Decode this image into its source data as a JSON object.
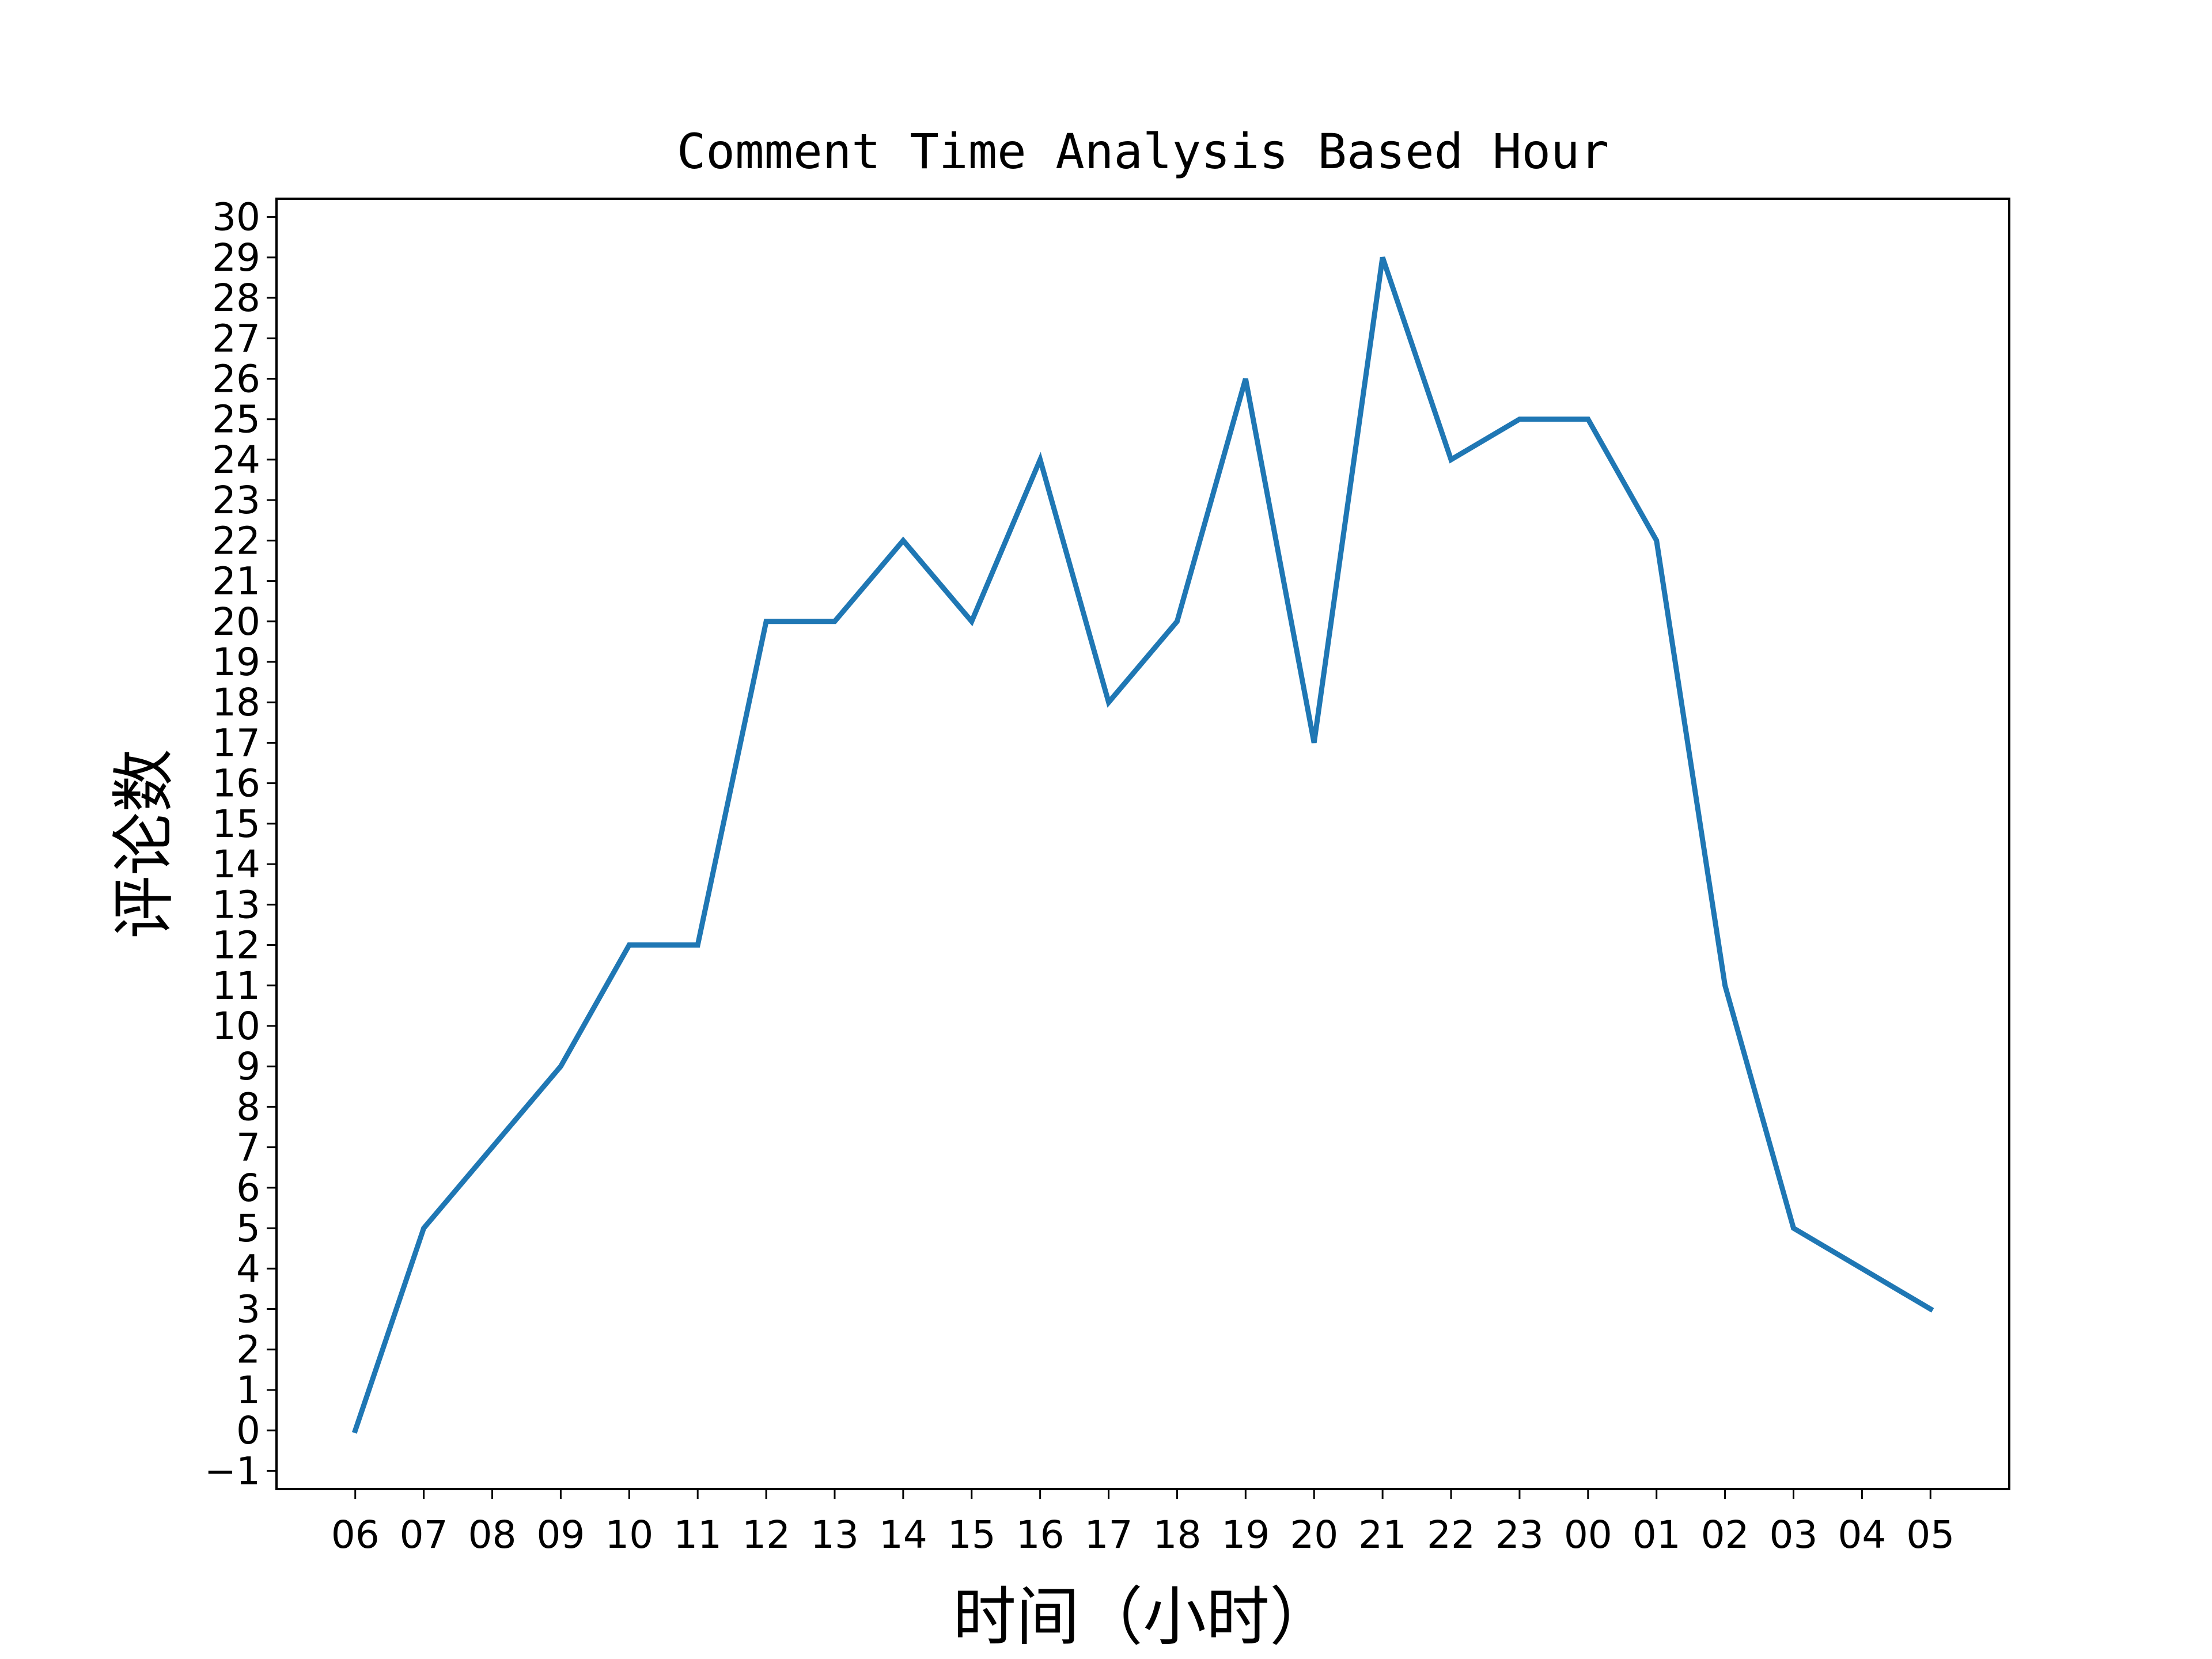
{
  "chart_data": {
    "type": "line",
    "title": "Comment Time Analysis Based Hour",
    "xlabel": "时间（小时）",
    "ylabel": "评论数",
    "categories": [
      "06",
      "07",
      "08",
      "09",
      "10",
      "11",
      "12",
      "13",
      "14",
      "15",
      "16",
      "17",
      "18",
      "19",
      "20",
      "21",
      "22",
      "23",
      "00",
      "01",
      "02",
      "03",
      "04",
      "05"
    ],
    "series": [
      {
        "values": [
          0,
          5,
          7,
          9,
          12,
          12,
          20,
          20,
          22,
          20,
          24,
          18,
          20,
          26,
          17,
          29,
          24,
          25,
          25,
          22,
          11,
          5,
          4,
          3
        ]
      }
    ],
    "ylim": [
      -1.45,
      30.45
    ],
    "yticks": [
      -1,
      0,
      1,
      2,
      3,
      4,
      5,
      6,
      7,
      8,
      9,
      10,
      11,
      12,
      13,
      14,
      15,
      16,
      17,
      18,
      19,
      20,
      21,
      22,
      23,
      24,
      25,
      26,
      27,
      28,
      29,
      30
    ],
    "ytick_labels": [
      "−1",
      "0",
      "1",
      "2",
      "3",
      "4",
      "5",
      "6",
      "7",
      "8",
      "9",
      "10",
      "11",
      "12",
      "13",
      "14",
      "15",
      "16",
      "17",
      "18",
      "19",
      "20",
      "21",
      "22",
      "23",
      "24",
      "25",
      "26",
      "27",
      "28",
      "29",
      "30"
    ],
    "grid": false,
    "legend": "none",
    "line_color": "#1f77b4"
  }
}
